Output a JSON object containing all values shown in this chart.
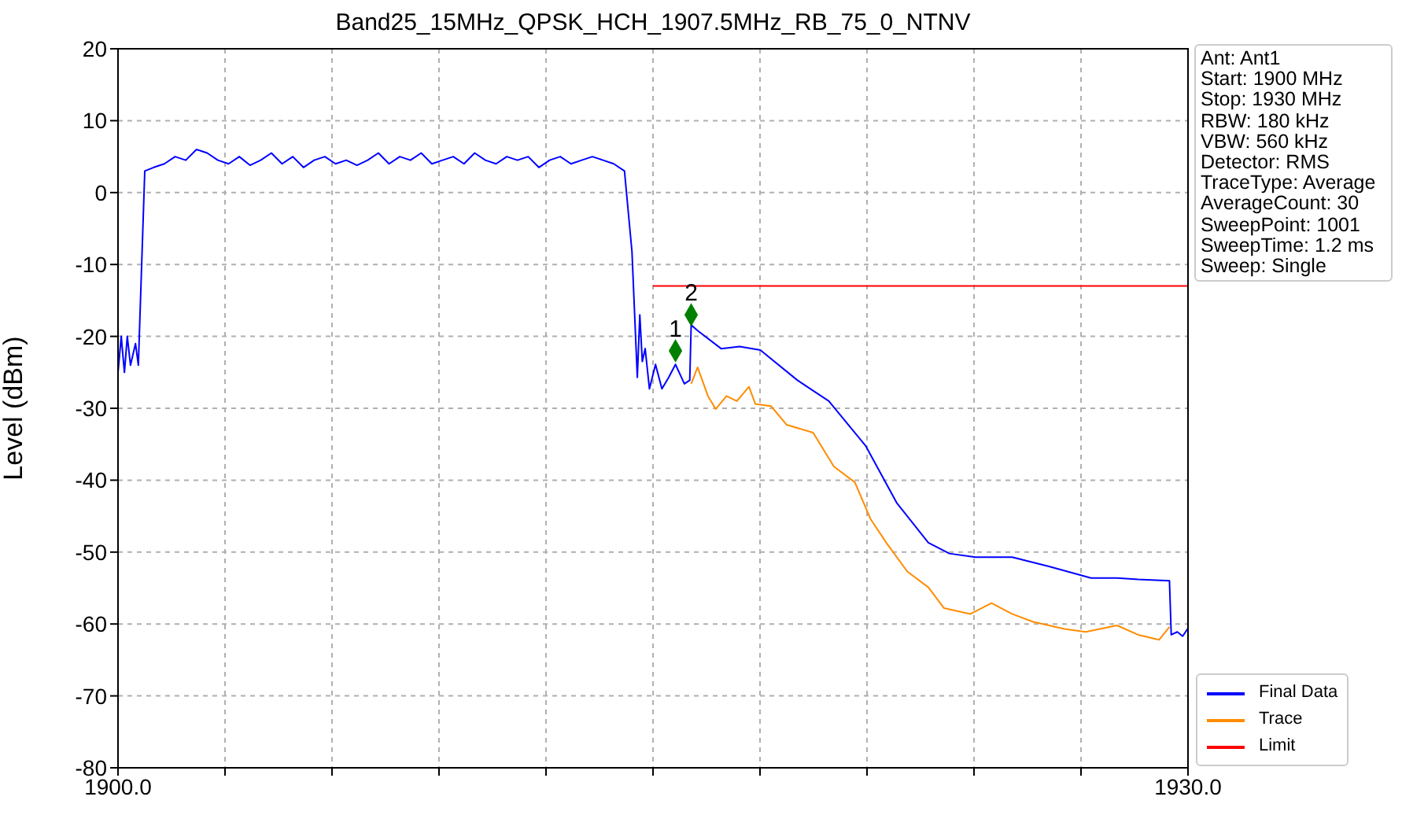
{
  "chart_data": {
    "type": "line",
    "title": "Band25_15MHz_QPSK_HCH_1907.5MHz_RB_75_0_NTNV",
    "ylabel": "Level (dBm)",
    "xlim": [
      1900,
      1930
    ],
    "xticks": [
      {
        "value": 1900,
        "label": "1900.0"
      },
      {
        "value": 1903,
        "label": null
      },
      {
        "value": 1906,
        "label": null
      },
      {
        "value": 1909,
        "label": null
      },
      {
        "value": 1912,
        "label": null
      },
      {
        "value": 1915,
        "label": null
      },
      {
        "value": 1918,
        "label": null
      },
      {
        "value": 1921,
        "label": null
      },
      {
        "value": 1924,
        "label": null
      },
      {
        "value": 1927,
        "label": null
      },
      {
        "value": 1930,
        "label": "1930.0"
      }
    ],
    "ylim": [
      -80,
      20
    ],
    "yticks": [
      -80,
      -70,
      -60,
      -50,
      -40,
      -30,
      -20,
      -10,
      0,
      10,
      20
    ],
    "grid": true,
    "legend": "bottom right",
    "annotations": [
      "Ant: Ant1",
      "Start: 1900 MHz",
      "Stop: 1930 MHz",
      "RBW: 180 kHz",
      "VBW: 560 kHz",
      "Detector: RMS",
      "TraceType: Average",
      "AverageCount: 30",
      "SweepPoint: 1001",
      "SweepTime: 1.2 ms",
      "Sweep: Single",
      {
        "text": "1",
        "x": 1915.63,
        "y": -22
      },
      {
        "text": "2",
        "x": 1916.07,
        "y": -17
      }
    ],
    "series": [
      {
        "name": "Final Data",
        "color": "#0000ff",
        "x": [
          1900.0,
          1900.09,
          1900.18,
          1900.26,
          1900.35,
          1900.49,
          1900.57,
          1900.75,
          1901.0,
          1901.3,
          1901.6,
          1901.9,
          1902.2,
          1902.5,
          1902.8,
          1903.1,
          1903.4,
          1903.7,
          1904.0,
          1904.3,
          1904.6,
          1904.9,
          1905.2,
          1905.5,
          1905.8,
          1906.1,
          1906.4,
          1906.7,
          1907.0,
          1907.3,
          1907.6,
          1907.9,
          1908.2,
          1908.5,
          1908.8,
          1909.1,
          1909.4,
          1909.7,
          1910.0,
          1910.3,
          1910.6,
          1910.9,
          1911.2,
          1911.5,
          1911.8,
          1912.1,
          1912.4,
          1912.7,
          1913.0,
          1913.3,
          1913.6,
          1913.9,
          1914.2,
          1914.41,
          1914.56,
          1914.63,
          1914.7,
          1914.78,
          1914.9,
          1915.07,
          1915.25,
          1915.44,
          1915.63,
          1915.88,
          1916.03,
          1916.07,
          1916.25,
          1916.91,
          1917.43,
          1918.01,
          1919.05,
          1919.93,
          1920.96,
          1921.84,
          1922.72,
          1923.31,
          1924.04,
          1925.07,
          1926.1,
          1927.28,
          1928.01,
          1928.6,
          1929.48,
          1929.53,
          1929.7,
          1929.85,
          1930.0
        ],
        "values": [
          -25,
          -20,
          -25,
          -20,
          -24,
          -21,
          -24,
          3,
          3.5,
          4,
          5,
          4.5,
          6,
          5.5,
          4.5,
          4,
          5,
          3.8,
          4.5,
          5.5,
          4,
          5,
          3.5,
          4.5,
          5,
          4,
          4.5,
          3.8,
          4.5,
          5.5,
          4,
          5,
          4.5,
          5.5,
          4,
          4.5,
          5,
          4,
          5.5,
          4.5,
          4,
          5,
          4.5,
          5,
          3.5,
          4.5,
          5,
          4,
          4.5,
          5,
          4.5,
          4,
          3,
          -8.2,
          -25.7,
          -17,
          -23.5,
          -21.7,
          -27.3,
          -23.9,
          -27.3,
          -25.7,
          -23.9,
          -26.6,
          -26.1,
          -18.4,
          -19.2,
          -21.7,
          -21.4,
          -21.9,
          -26.1,
          -29,
          -35.2,
          -43.2,
          -48.7,
          -50.2,
          -50.7,
          -50.7,
          -52,
          -53.6,
          -53.6,
          -53.8,
          -54,
          -61.5,
          -61.1,
          -61.7,
          -60.6
        ]
      },
      {
        "name": "Trace",
        "color": "#ff8c00",
        "x": [
          1916.07,
          1916.25,
          1916.54,
          1916.76,
          1917.06,
          1917.35,
          1917.69,
          1917.87,
          1918.31,
          1918.75,
          1919.49,
          1920.07,
          1920.66,
          1921.1,
          1921.54,
          1922.13,
          1922.72,
          1923.16,
          1923.9,
          1924.49,
          1925.07,
          1925.66,
          1926.54,
          1927.13,
          1928.01,
          1928.6,
          1929.19,
          1929.48
        ],
        "values": [
          -26.6,
          -24.3,
          -28.3,
          -30.1,
          -28.3,
          -29,
          -27,
          -29.4,
          -29.7,
          -32.3,
          -33.4,
          -38.1,
          -40.3,
          -45.4,
          -48.7,
          -52.7,
          -54.9,
          -57.8,
          -58.6,
          -57.1,
          -58.6,
          -59.7,
          -60.7,
          -61.1,
          -60.2,
          -61.5,
          -62.2,
          -60.4
        ]
      },
      {
        "name": "Limit",
        "color": "#ff0000",
        "x": [
          1915,
          1930
        ],
        "values": [
          -13,
          -13
        ]
      },
      {
        "type": "scatter",
        "color": "#008000",
        "marker": "diamond",
        "x": [
          1915.63,
          1916.07
        ],
        "values": [
          -22,
          -17
        ]
      }
    ]
  }
}
